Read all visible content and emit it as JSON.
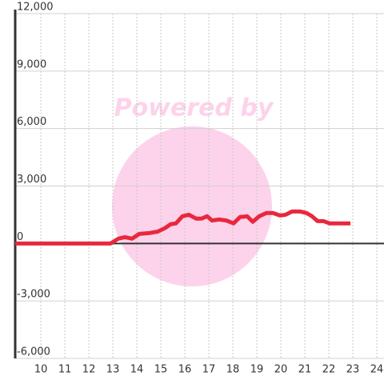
{
  "chart_data": {
    "type": "line",
    "watermark": "Powered by",
    "x": [
      8.93,
      12.9,
      13.23,
      13.5,
      13.8,
      14.1,
      14.5,
      14.87,
      15.17,
      15.4,
      15.63,
      15.9,
      16.17,
      16.47,
      16.7,
      16.93,
      17.13,
      17.43,
      17.73,
      18.03,
      18.3,
      18.6,
      18.83,
      19.1,
      19.4,
      19.67,
      19.97,
      20.2,
      20.47,
      20.8,
      21.07,
      21.3,
      21.53,
      21.77,
      22.03,
      22.3,
      22.9
    ],
    "series": [
      {
        "color": "#e8283f",
        "values": [
          0,
          0,
          250,
          330,
          250,
          500,
          540,
          620,
          800,
          1000,
          1050,
          1420,
          1500,
          1300,
          1300,
          1420,
          1200,
          1250,
          1200,
          1050,
          1380,
          1420,
          1130,
          1420,
          1590,
          1590,
          1460,
          1500,
          1670,
          1670,
          1590,
          1420,
          1170,
          1170,
          1050,
          1050,
          1050
        ]
      }
    ],
    "xlim": [
      8.93,
      24.3
    ],
    "xticks": [
      10,
      11,
      12,
      13,
      14,
      15,
      16,
      17,
      18,
      19,
      20,
      21,
      22,
      23,
      24
    ],
    "ylim": [
      -6000,
      12000
    ],
    "yticks": [
      {
        "value": -6000,
        "label": "-6,000"
      },
      {
        "value": -3000,
        "label": "-3,000"
      },
      0,
      {
        "value": 3000,
        "label": "3,000"
      },
      {
        "value": 6000,
        "label": "6,000"
      },
      {
        "value": 9000,
        "label": "9,000"
      },
      {
        "value": 12000,
        "label": "12,000"
      }
    ],
    "grid": true
  }
}
